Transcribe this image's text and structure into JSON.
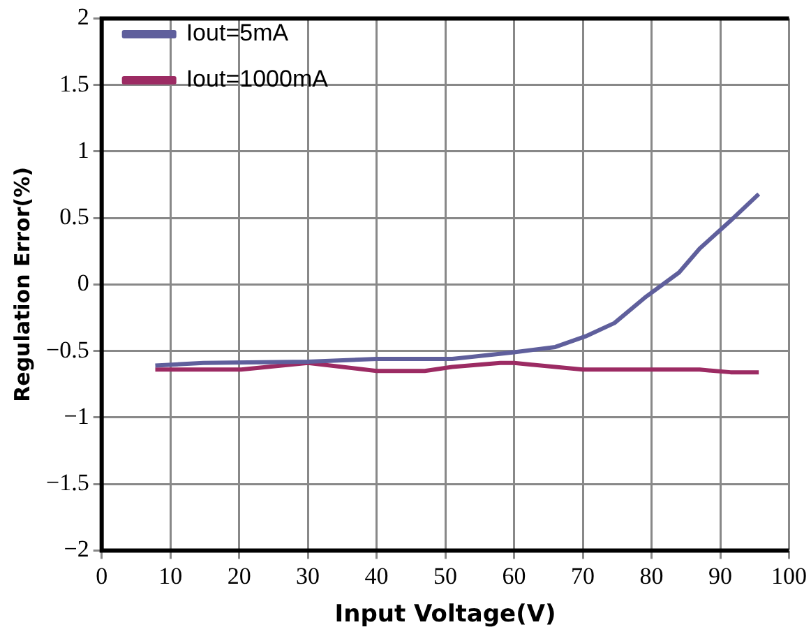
{
  "chart_data": {
    "type": "line",
    "xlabel": "Input Voltage(V)",
    "ylabel": "Regulation Error(%)",
    "xlim": [
      0,
      100
    ],
    "xticks": [
      0,
      10,
      20,
      30,
      40,
      50,
      60,
      70,
      80,
      90,
      100
    ],
    "ylim": [
      -2,
      2
    ],
    "yticks": [
      {
        "value": -2,
        "label": "−2"
      },
      {
        "value": -1.5,
        "label": "−1.5"
      },
      {
        "value": -1,
        "label": "−1"
      },
      {
        "value": -0.5,
        "label": "−0.5"
      },
      0,
      0.5,
      1,
      1.5,
      2
    ],
    "grid": true,
    "legend": "top left",
    "marker": "none",
    "line_style": "solid",
    "series": [
      {
        "name": "Iout=5mA",
        "color": "#5f5f9c",
        "x": [
          7.8,
          14.8,
          30,
          40,
          51,
          60,
          66,
          70.4,
          74.6,
          79,
          84,
          87,
          91.5,
          95.6
        ],
        "values": [
          -0.61,
          -0.59,
          -0.58,
          -0.56,
          -0.56,
          -0.51,
          -0.47,
          -0.39,
          -0.29,
          -0.1,
          0.09,
          0.27,
          0.48,
          0.68
        ]
      },
      {
        "name": "Iout=1000mA",
        "color": "#9c2b63",
        "x": [
          7.8,
          20.3,
          30,
          40,
          47,
          51,
          58,
          60,
          70,
          87,
          91.5,
          95.6
        ],
        "values": [
          -0.64,
          -0.64,
          -0.59,
          -0.65,
          -0.65,
          -0.62,
          -0.59,
          -0.59,
          -0.64,
          -0.64,
          -0.66,
          -0.66
        ]
      }
    ]
  }
}
